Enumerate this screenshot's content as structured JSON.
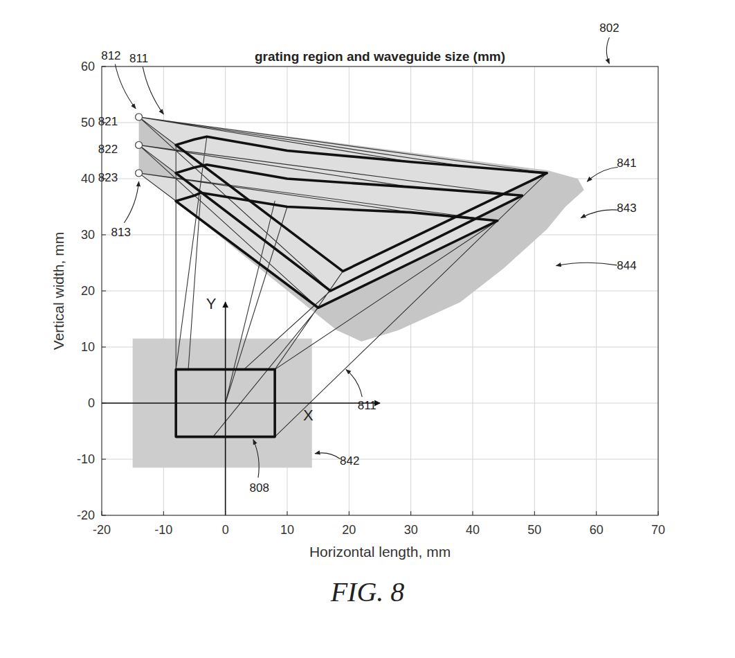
{
  "chart_data": {
    "type": "line",
    "title": "grating region and waveguide size (mm)",
    "x_label": "Horizontal length, mm",
    "y_label": "Vertical width, mm",
    "caption": "FIG. 8",
    "xlim": [
      -20,
      70
    ],
    "ylim": [
      -20,
      60
    ],
    "xticks": [
      -20,
      -10,
      0,
      10,
      20,
      30,
      40,
      50,
      60,
      70
    ],
    "yticks": [
      -20,
      -10,
      0,
      10,
      20,
      30,
      40,
      50,
      60
    ],
    "grid": true,
    "series": [
      {
        "type": "area",
        "color": "#c6c6c6",
        "x": [
          -14,
          52,
          57,
          58,
          55,
          52,
          48,
          45,
          38,
          28,
          22,
          18,
          -8,
          -14
        ],
        "values": [
          51,
          41.5,
          40,
          38,
          35,
          31,
          27,
          24,
          18,
          13,
          11,
          13,
          36,
          41
        ]
      },
      {
        "type": "area",
        "color": "#cdcdcd",
        "x": [
          -15,
          14,
          14,
          -15,
          -15
        ],
        "values": [
          -11.5,
          -11.5,
          11.5,
          11.5,
          -11.5
        ]
      },
      {
        "type": "area",
        "color": "#dedede",
        "x": [
          -14,
          52,
          19,
          -14
        ],
        "values": [
          51,
          41,
          23.5,
          51
        ]
      },
      {
        "type": "area",
        "color": "#dedede",
        "x": [
          -14,
          48,
          17,
          -14
        ],
        "values": [
          46,
          37,
          20,
          46
        ]
      },
      {
        "type": "area",
        "color": "#dedede",
        "x": [
          -14,
          44,
          15,
          -14
        ],
        "values": [
          41,
          32.5,
          17,
          41
        ]
      },
      {
        "type": "line",
        "color": "#333333",
        "line_style": "solid",
        "x": [
          -14,
          52,
          null,
          -14,
          19,
          null,
          -14,
          30,
          null,
          -14,
          40,
          null,
          -14,
          17,
          null,
          -14,
          48,
          null,
          -14,
          17,
          null,
          -14,
          30,
          null,
          -14,
          15,
          null,
          -14,
          44,
          null,
          -14,
          15,
          null,
          -14,
          30,
          null,
          -8,
          -8,
          null,
          -8,
          -3,
          null,
          -2,
          15,
          null,
          0,
          10,
          null,
          3,
          17,
          null,
          8,
          19,
          null,
          8,
          52,
          null,
          -6,
          -4,
          null,
          0,
          8,
          null,
          8,
          44
        ],
        "values": [
          51,
          41,
          null,
          51,
          23.5,
          null,
          51,
          43,
          null,
          51,
          42,
          null,
          51,
          20,
          null,
          46,
          37,
          null,
          46,
          20,
          null,
          46,
          38.5,
          null,
          46,
          17,
          null,
          41,
          32.5,
          null,
          41,
          17,
          null,
          41,
          34,
          null,
          -6,
          46,
          null,
          6,
          47.5,
          null,
          -6,
          17,
          null,
          0,
          35,
          null,
          6,
          20,
          null,
          6,
          23.5,
          null,
          -6,
          41,
          null,
          6,
          37,
          null,
          0,
          36,
          null,
          6,
          32.5
        ]
      },
      {
        "type": "line",
        "color": "#111111",
        "line_style": "bold",
        "x": [
          -8,
          8,
          8,
          -8,
          -8
        ],
        "values": [
          -6,
          -6,
          6,
          6,
          -6
        ]
      },
      {
        "type": "line",
        "color": "#111111",
        "line_style": "bold",
        "x": [
          -8,
          -5,
          -3,
          10,
          30,
          52,
          19,
          -8
        ],
        "values": [
          46,
          47,
          47.5,
          45,
          43,
          41,
          23.5,
          46
        ]
      },
      {
        "type": "line",
        "color": "#111111",
        "line_style": "bold",
        "x": [
          -8,
          -5,
          -3,
          10,
          30,
          48,
          17,
          -8
        ],
        "values": [
          41,
          42,
          42.5,
          40,
          38.5,
          37,
          20,
          41
        ]
      },
      {
        "type": "line",
        "color": "#111111",
        "line_style": "bold",
        "x": [
          -8,
          -5,
          -4,
          10,
          30,
          44,
          15,
          -8
        ],
        "values": [
          36,
          37,
          37.5,
          35,
          34,
          32.5,
          17,
          36
        ]
      },
      {
        "type": "arrow",
        "color": "#111111",
        "line_style": "solid",
        "x": [
          -20,
          25
        ],
        "values": [
          0,
          0
        ]
      },
      {
        "type": "arrow",
        "color": "#111111",
        "line_style": "solid",
        "x": [
          0,
          0
        ],
        "values": [
          -20,
          18
        ]
      },
      {
        "type": "scatter",
        "color": "#555555",
        "marker": "circle",
        "x": [
          -14,
          -14,
          -14
        ],
        "values": [
          51,
          46,
          41
        ]
      }
    ],
    "annotations": [
      {
        "text": "802",
        "x": 62.1,
        "y": 66.9,
        "target_x": 62.1,
        "target_y": 60.5
      },
      {
        "text": "812",
        "x": -18.5,
        "y": 62,
        "target_x": -14.5,
        "target_y": 52.5
      },
      {
        "text": "811",
        "x": -14,
        "y": 61.5,
        "target_x": -10,
        "target_y": 51.5
      },
      {
        "text": "821",
        "x": -19,
        "y": 50.3
      },
      {
        "text": "822",
        "x": -19,
        "y": 45.3
      },
      {
        "text": "823",
        "x": -19,
        "y": 40.3
      },
      {
        "text": "813",
        "x": -16.9,
        "y": 30.5,
        "target_x": -14,
        "target_y": 39.5
      },
      {
        "text": "841",
        "x": 64.9,
        "y": 42.8,
        "target_x": 58.5,
        "target_y": 39.5
      },
      {
        "text": "843",
        "x": 64.9,
        "y": 34.8,
        "target_x": 57.5,
        "target_y": 33
      },
      {
        "text": "844",
        "x": 64.9,
        "y": 24.6,
        "target_x": 53.5,
        "target_y": 24.5
      },
      {
        "text": "811",
        "x": 22.9,
        "y": -0.4,
        "target_x": 19.5,
        "target_y": 6
      },
      {
        "text": "808",
        "x": 5.5,
        "y": -15,
        "target_x": 4.5,
        "target_y": -6.5
      },
      {
        "text": "842",
        "x": 20.1,
        "y": -10.3,
        "target_x": 14.5,
        "target_y": -9
      },
      {
        "text": "X",
        "x": 13.4,
        "y": -2.4
      },
      {
        "text": "Y",
        "x": -2.3,
        "y": 17.5
      }
    ]
  }
}
